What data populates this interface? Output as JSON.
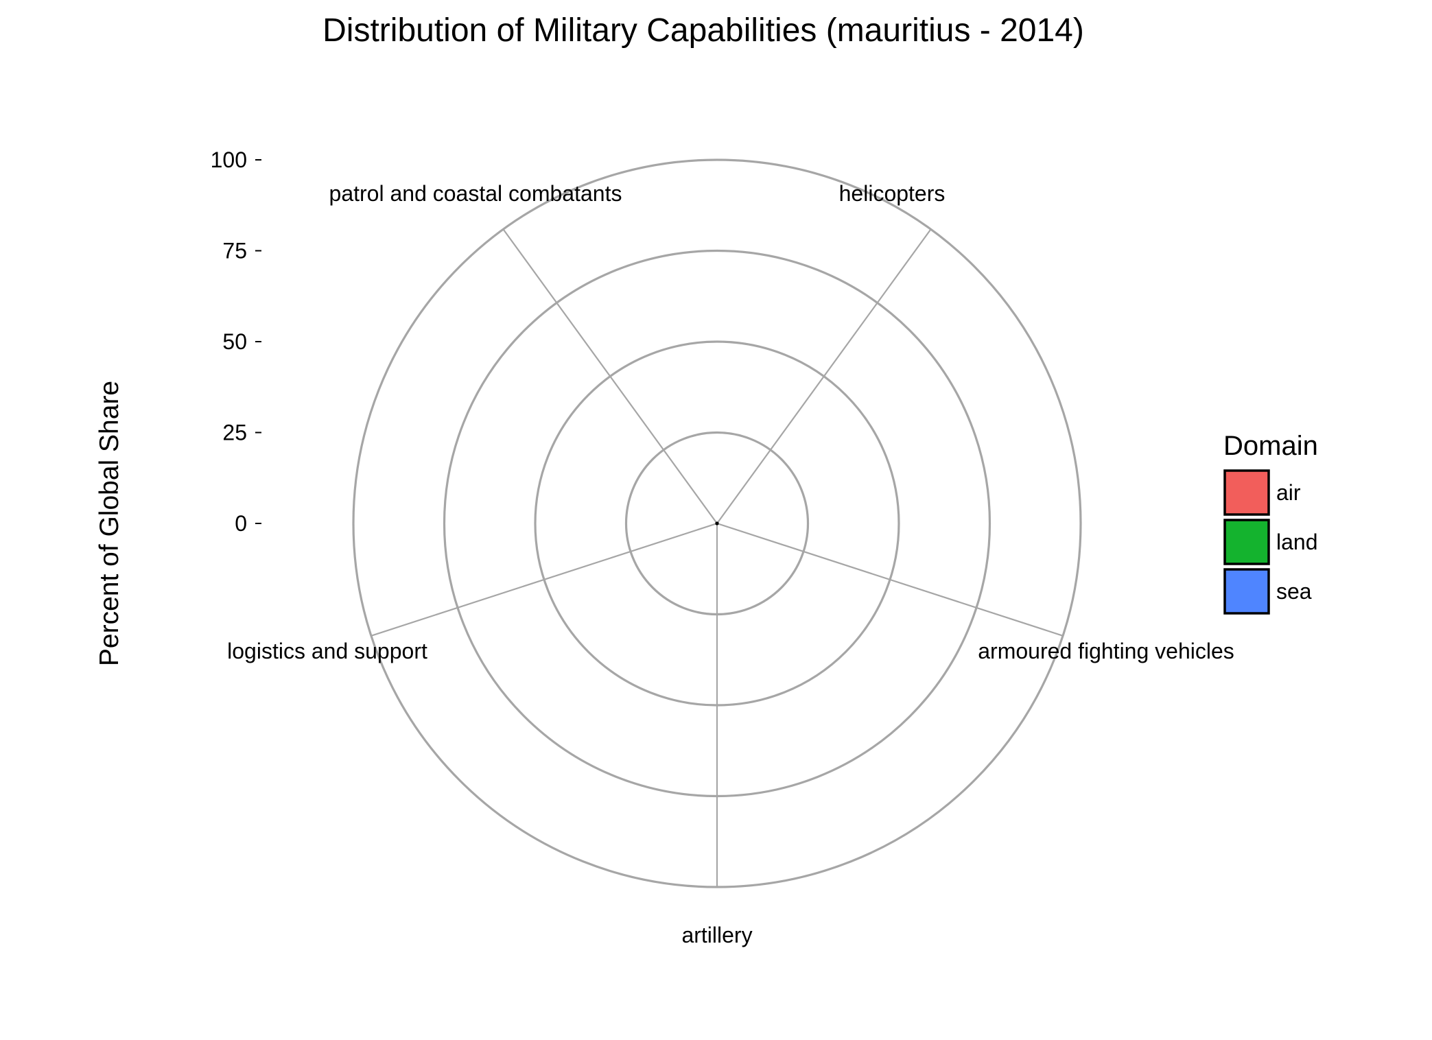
{
  "chart_data": {
    "type": "radar",
    "title": "Distribution of Military Capabilities (mauritius - 2014)",
    "xlabel": "",
    "ylabel": "Percent of Global Share",
    "ylim": [
      0,
      100
    ],
    "yticks": [
      0,
      25,
      50,
      75,
      100
    ],
    "categories": [
      "helicopters",
      "armoured fighting vehicles",
      "artillery",
      "logistics and support",
      "patrol and coastal combatants"
    ],
    "values": [
      0,
      0,
      0,
      0,
      0
    ],
    "grid": true,
    "colors": {
      "grid": "#a6a6a6",
      "spoke": "#a6a6a6",
      "center": "#000000"
    },
    "legend": {
      "title": "Domain",
      "position": "right",
      "entries": [
        {
          "name": "air",
          "color": "#f25e5b"
        },
        {
          "name": "land",
          "color": "#14b32e"
        },
        {
          "name": "sea",
          "color": "#4f85ff"
        }
      ]
    }
  }
}
